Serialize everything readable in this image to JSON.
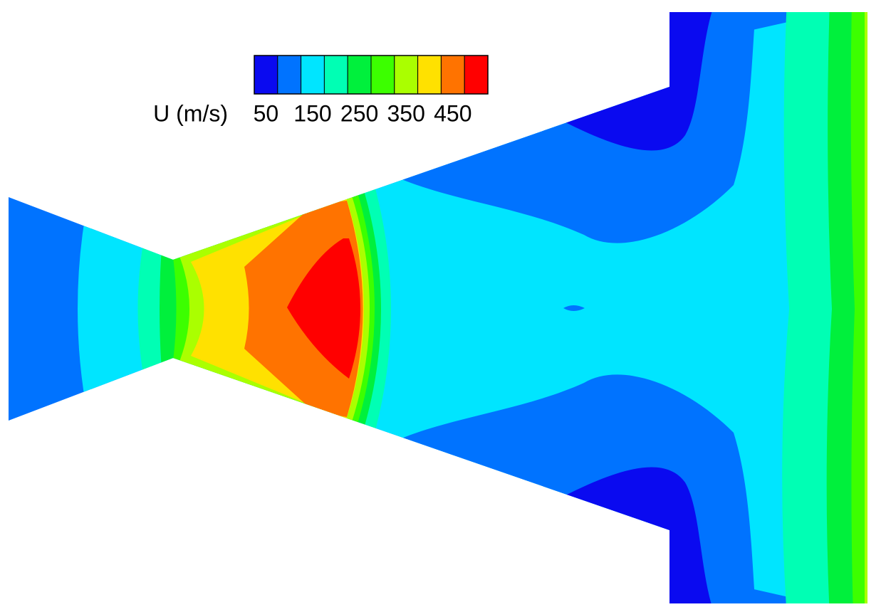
{
  "chart_data": {
    "type": "contour",
    "colorbar_label": "U (m/s)",
    "levels": [
      50,
      100,
      150,
      200,
      250,
      300,
      350,
      400,
      450,
      500
    ],
    "colors": [
      "#0a0af0",
      "#0073ff",
      "#00e5ff",
      "#00ffb4",
      "#00f03c",
      "#3cff00",
      "#aaff00",
      "#ffe100",
      "#ff7300",
      "#ff0000"
    ],
    "colorbar_ticks": [
      50,
      150,
      250,
      350,
      450
    ]
  }
}
